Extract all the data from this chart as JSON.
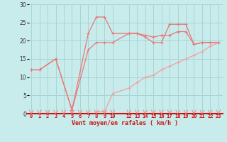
{
  "xlabel": "Vent moyen/en rafales ( km/h )",
  "background_color": "#c8ecec",
  "grid_color": "#aad4d4",
  "line_color": "#e87878",
  "line_color_light": "#f0a0a0",
  "xlim": [
    -0.5,
    23.5
  ],
  "ylim": [
    0,
    30
  ],
  "yticks": [
    0,
    5,
    10,
    15,
    20,
    25,
    30
  ],
  "xtick_positions": [
    0,
    1,
    2,
    3,
    4,
    5,
    6,
    7,
    8,
    9,
    10,
    12,
    13,
    14,
    15,
    16,
    17,
    18,
    19,
    20,
    21,
    22,
    23
  ],
  "xtick_labels": [
    "0",
    "1",
    "2",
    "3",
    "4",
    "5",
    "6",
    "7",
    "8",
    "9",
    "10",
    "12",
    "13",
    "14",
    "15",
    "16",
    "17",
    "18",
    "19",
    "20",
    "21",
    "22",
    "23"
  ],
  "hours": [
    0,
    1,
    3,
    5,
    7,
    8,
    9,
    10,
    12,
    13,
    14,
    15,
    16,
    17,
    18,
    19,
    20,
    21,
    22,
    23
  ],
  "wind_gust": [
    12,
    12,
    15,
    1,
    22,
    26.5,
    26.5,
    22,
    22,
    22,
    21,
    19.5,
    19.5,
    24.5,
    24.5,
    24.5,
    19,
    19.5,
    19.5,
    19.5
  ],
  "wind_avg": [
    12,
    12,
    15,
    1,
    17.5,
    19.5,
    19.5,
    19.5,
    22,
    22,
    21.5,
    21,
    21.5,
    21.5,
    22.5,
    22.5,
    19,
    19.5,
    19.5,
    19.5
  ],
  "wind_min": [
    12,
    12,
    null,
    1,
    null,
    0.5,
    0.5,
    5.5,
    7,
    8.5,
    10,
    10.5,
    12,
    13,
    14,
    15,
    16,
    17,
    18.5,
    19.5
  ]
}
